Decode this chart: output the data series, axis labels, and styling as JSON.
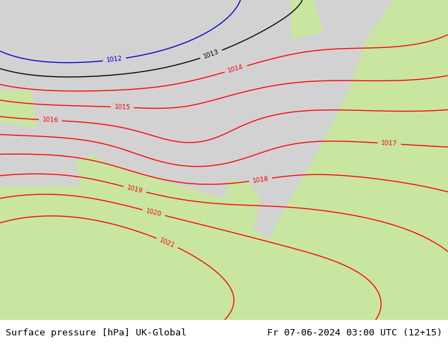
{
  "title_left": "Surface pressure [hPa] UK-Global",
  "title_right": "Fr 07-06-2024 03:00 UTC (12+15)",
  "title_fontsize": 9.5,
  "title_color": "#000000",
  "bg_color": "#ffffff",
  "bottom_bar_color": "#c8c8c8",
  "fig_width": 6.34,
  "fig_height": 4.9,
  "dpi": 100,
  "land_green_color": "#c8e6a0",
  "sea_gray_color": "#d2d2d2",
  "contour_red_color": "#ff0000",
  "contour_blue_color": "#0000cd",
  "contour_black_color": "#000000",
  "contour_linewidth": 1.0,
  "label_fontsize": 6.5
}
